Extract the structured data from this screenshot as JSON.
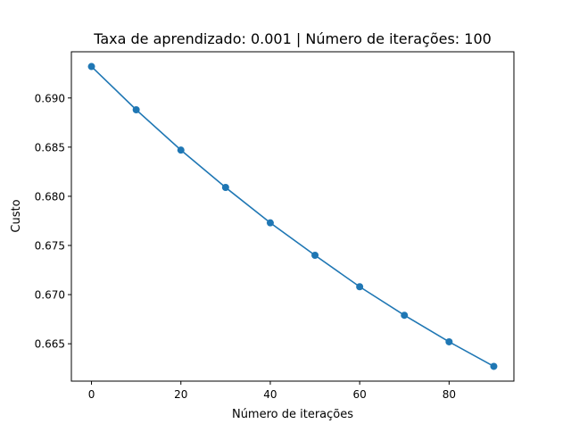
{
  "chart_data": {
    "type": "line",
    "title": "Taxa de aprendizado: 0.001 | Número de iterações: 100",
    "xlabel": "Número de iterações",
    "ylabel": "Custo",
    "x": [
      0,
      10,
      20,
      30,
      40,
      50,
      60,
      70,
      80,
      90
    ],
    "series": [
      {
        "values": [
          0.6932,
          0.6888,
          0.6847,
          0.6809,
          0.6773,
          0.674,
          0.6708,
          0.6679,
          0.6652,
          0.6627
        ],
        "color": "#1f77b4",
        "marker": "circle"
      }
    ],
    "xlim": [
      -4.5,
      94.5
    ],
    "ylim": [
      0.6612,
      0.6947
    ],
    "xticks": [
      {
        "value": 0,
        "label": "0"
      },
      {
        "value": 20,
        "label": "20"
      },
      {
        "value": 40,
        "label": "40"
      },
      {
        "value": 60,
        "label": "60"
      },
      {
        "value": 80,
        "label": "80"
      }
    ],
    "yticks": [
      {
        "value": 0.665,
        "label": "0.665"
      },
      {
        "value": 0.67,
        "label": "0.670"
      },
      {
        "value": 0.675,
        "label": "0.675"
      },
      {
        "value": 0.68,
        "label": "0.680"
      },
      {
        "value": 0.685,
        "label": "0.685"
      },
      {
        "value": 0.69,
        "label": "0.690"
      }
    ],
    "grid": false,
    "legend": "none"
  }
}
